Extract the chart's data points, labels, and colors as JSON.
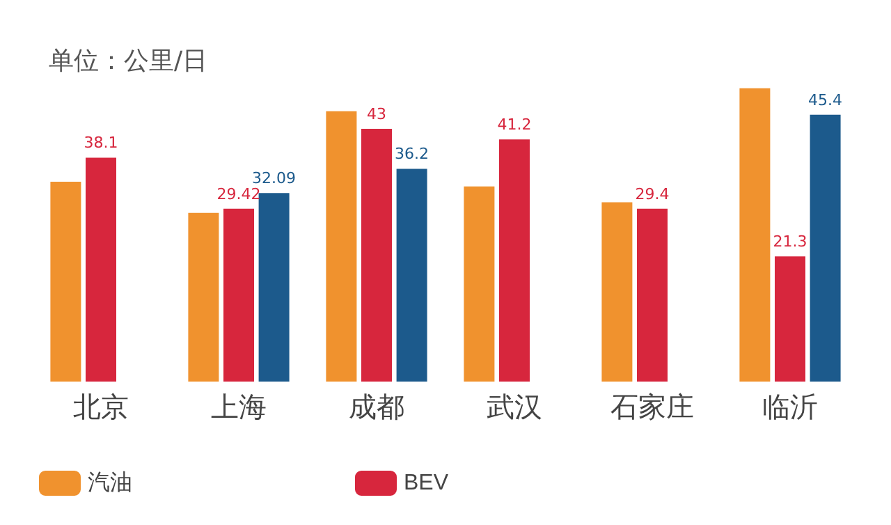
{
  "chart_data": {
    "type": "bar",
    "title": "单位：公里/日",
    "categories": [
      "北京",
      "上海",
      "成都",
      "武汉",
      "石家庄",
      "临沂"
    ],
    "series": [
      {
        "name": "汽油",
        "color": "#f0922e",
        "values": [
          34,
          28.7,
          46,
          33.2,
          30.5,
          49.9
        ]
      },
      {
        "name": "BEV",
        "color": "#d7263d",
        "values": [
          38.1,
          29.42,
          43,
          41.2,
          29.4,
          21.3
        ],
        "value_labels": [
          "38.1",
          "29.42",
          "43",
          "41.2",
          "29.4",
          "21.3"
        ]
      },
      {
        "color": "#1c5a8c",
        "values": [
          null,
          32.09,
          36.2,
          null,
          null,
          45.4
        ],
        "value_labels": [
          null,
          "32.09",
          "36.2",
          null,
          null,
          "45.4"
        ]
      }
    ],
    "legend": "bottom left"
  }
}
